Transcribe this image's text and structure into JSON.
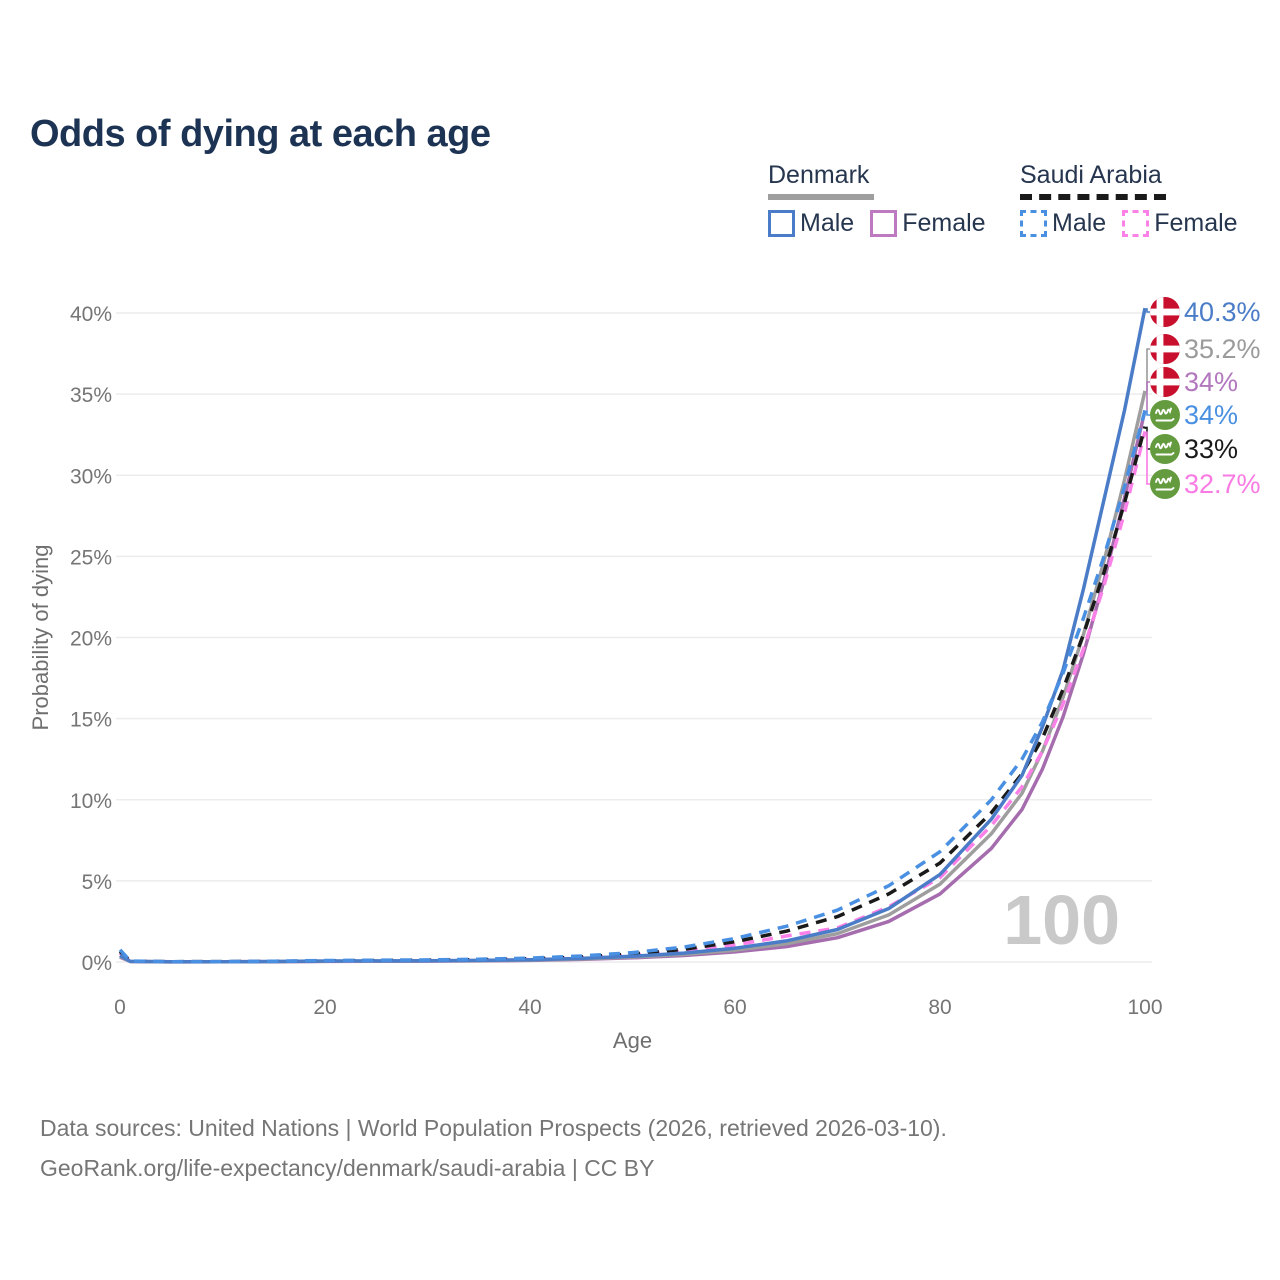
{
  "title": "Odds of dying at each age",
  "watermark": "100",
  "legend": {
    "groups": [
      {
        "id": "denmark",
        "label": "Denmark",
        "line_style": "solid",
        "underline_color": "#9e9e9e",
        "items": [
          {
            "label": "Male",
            "color": "#4a7cc7",
            "dashed": false
          },
          {
            "label": "Female",
            "color": "#bd7ac1",
            "dashed": false
          }
        ]
      },
      {
        "id": "saudi",
        "label": "Saudi Arabia",
        "line_style": "dashed",
        "underline_color": "#1a1a1a",
        "items": [
          {
            "label": "Male",
            "color": "#4a90e2",
            "dashed": true
          },
          {
            "label": "Female",
            "color": "#fb80e8",
            "dashed": true
          }
        ]
      }
    ]
  },
  "chart_data": {
    "type": "line",
    "title": "Odds of dying at each age",
    "xlabel": "Age",
    "ylabel": "Probability of dying",
    "xlim": [
      0,
      100
    ],
    "ylim": [
      0,
      40
    ],
    "x_ticks": [
      0,
      20,
      40,
      60,
      80,
      100
    ],
    "y_ticks": [
      {
        "value": 0,
        "label": "0%"
      },
      {
        "value": 5,
        "label": "5%"
      },
      {
        "value": 10,
        "label": "10%"
      },
      {
        "value": 15,
        "label": "15%"
      },
      {
        "value": 20,
        "label": "20%"
      },
      {
        "value": 25,
        "label": "25%"
      },
      {
        "value": 30,
        "label": "30%"
      },
      {
        "value": 35,
        "label": "35%"
      },
      {
        "value": 40,
        "label": "40%"
      }
    ],
    "grid": "horizontal-only",
    "legend_position": "top-right",
    "series": [
      {
        "id": "denmark-female",
        "name": "Denmark Female",
        "color": "#a56cae",
        "dashed": false,
        "points": [
          [
            0,
            0.3
          ],
          [
            1,
            0.03
          ],
          [
            5,
            0.008
          ],
          [
            10,
            0.01
          ],
          [
            15,
            0.02
          ],
          [
            20,
            0.035
          ],
          [
            25,
            0.045
          ],
          [
            30,
            0.055
          ],
          [
            35,
            0.07
          ],
          [
            40,
            0.1
          ],
          [
            45,
            0.16
          ],
          [
            50,
            0.26
          ],
          [
            55,
            0.4
          ],
          [
            60,
            0.62
          ],
          [
            65,
            0.95
          ],
          [
            70,
            1.5
          ],
          [
            75,
            2.5
          ],
          [
            80,
            4.2
          ],
          [
            85,
            7.0
          ],
          [
            88,
            9.4
          ],
          [
            90,
            11.9
          ],
          [
            92,
            15.1
          ],
          [
            94,
            19.0
          ],
          [
            96,
            23.5
          ],
          [
            98,
            28.6
          ],
          [
            100,
            34.0
          ]
        ]
      },
      {
        "id": "denmark-total",
        "name": "Denmark",
        "color": "#9e9e9e",
        "dashed": false,
        "points": [
          [
            0,
            0.35
          ],
          [
            1,
            0.035
          ],
          [
            5,
            0.009
          ],
          [
            10,
            0.011
          ],
          [
            15,
            0.025
          ],
          [
            20,
            0.045
          ],
          [
            25,
            0.055
          ],
          [
            30,
            0.065
          ],
          [
            35,
            0.085
          ],
          [
            40,
            0.12
          ],
          [
            45,
            0.19
          ],
          [
            50,
            0.3
          ],
          [
            55,
            0.47
          ],
          [
            60,
            0.73
          ],
          [
            65,
            1.12
          ],
          [
            70,
            1.75
          ],
          [
            75,
            2.9
          ],
          [
            80,
            4.8
          ],
          [
            85,
            7.9
          ],
          [
            88,
            10.4
          ],
          [
            90,
            13.0
          ],
          [
            92,
            16.3
          ],
          [
            94,
            20.2
          ],
          [
            96,
            24.7
          ],
          [
            98,
            29.7
          ],
          [
            100,
            35.2
          ]
        ]
      },
      {
        "id": "saudi-female",
        "name": "Saudi Arabia Female",
        "color": "#fb80e8",
        "dashed": true,
        "points": [
          [
            0,
            0.55
          ],
          [
            1,
            0.045
          ],
          [
            5,
            0.015
          ],
          [
            10,
            0.02
          ],
          [
            15,
            0.035
          ],
          [
            20,
            0.05
          ],
          [
            25,
            0.07
          ],
          [
            30,
            0.09
          ],
          [
            35,
            0.12
          ],
          [
            40,
            0.17
          ],
          [
            45,
            0.26
          ],
          [
            50,
            0.41
          ],
          [
            55,
            0.66
          ],
          [
            60,
            1.05
          ],
          [
            65,
            1.6
          ],
          [
            70,
            2.1
          ],
          [
            75,
            3.4
          ],
          [
            80,
            5.2
          ],
          [
            85,
            8.4
          ],
          [
            88,
            10.8
          ],
          [
            90,
            13.0
          ],
          [
            92,
            15.9
          ],
          [
            94,
            19.3
          ],
          [
            96,
            23.2
          ],
          [
            98,
            27.7
          ],
          [
            100,
            32.7
          ]
        ]
      },
      {
        "id": "saudi-total",
        "name": "Saudi Arabia",
        "color": "#1a1a1a",
        "dashed": true,
        "points": [
          [
            0,
            0.65
          ],
          [
            1,
            0.05
          ],
          [
            5,
            0.018
          ],
          [
            10,
            0.022
          ],
          [
            15,
            0.04
          ],
          [
            20,
            0.07
          ],
          [
            25,
            0.09
          ],
          [
            30,
            0.11
          ],
          [
            35,
            0.14
          ],
          [
            40,
            0.2
          ],
          [
            45,
            0.31
          ],
          [
            50,
            0.49
          ],
          [
            55,
            0.78
          ],
          [
            60,
            1.25
          ],
          [
            65,
            1.9
          ],
          [
            70,
            2.8
          ],
          [
            75,
            4.2
          ],
          [
            80,
            6.1
          ],
          [
            85,
            9.2
          ],
          [
            88,
            11.6
          ],
          [
            90,
            13.8
          ],
          [
            92,
            16.8
          ],
          [
            94,
            20.2
          ],
          [
            96,
            24.0
          ],
          [
            98,
            28.3
          ],
          [
            100,
            33.0
          ]
        ]
      },
      {
        "id": "denmark-male",
        "name": "Denmark Male",
        "color": "#4a7cc7",
        "dashed": false,
        "points": [
          [
            0,
            0.4
          ],
          [
            1,
            0.04
          ],
          [
            5,
            0.01
          ],
          [
            10,
            0.012
          ],
          [
            15,
            0.03
          ],
          [
            20,
            0.06
          ],
          [
            25,
            0.07
          ],
          [
            30,
            0.08
          ],
          [
            35,
            0.1
          ],
          [
            40,
            0.14
          ],
          [
            45,
            0.22
          ],
          [
            50,
            0.35
          ],
          [
            55,
            0.55
          ],
          [
            60,
            0.85
          ],
          [
            65,
            1.3
          ],
          [
            70,
            2.0
          ],
          [
            75,
            3.3
          ],
          [
            80,
            5.4
          ],
          [
            85,
            8.8
          ],
          [
            88,
            11.5
          ],
          [
            90,
            14.5
          ],
          [
            92,
            18.0
          ],
          [
            94,
            23.0
          ],
          [
            96,
            28.5
          ],
          [
            98,
            34.0
          ],
          [
            100,
            40.3
          ]
        ]
      },
      {
        "id": "saudi-male",
        "name": "Saudi Arabia Male",
        "color": "#4a90e2",
        "dashed": true,
        "points": [
          [
            0,
            0.75
          ],
          [
            1,
            0.06
          ],
          [
            5,
            0.02
          ],
          [
            10,
            0.025
          ],
          [
            15,
            0.05
          ],
          [
            20,
            0.09
          ],
          [
            25,
            0.11
          ],
          [
            30,
            0.13
          ],
          [
            35,
            0.17
          ],
          [
            40,
            0.24
          ],
          [
            45,
            0.37
          ],
          [
            50,
            0.58
          ],
          [
            55,
            0.92
          ],
          [
            60,
            1.45
          ],
          [
            65,
            2.2
          ],
          [
            70,
            3.2
          ],
          [
            75,
            4.7
          ],
          [
            80,
            6.8
          ],
          [
            85,
            10.0
          ],
          [
            88,
            12.5
          ],
          [
            90,
            14.8
          ],
          [
            92,
            17.8
          ],
          [
            94,
            21.2
          ],
          [
            96,
            25.0
          ],
          [
            98,
            29.3
          ],
          [
            100,
            34.0
          ]
        ]
      }
    ],
    "end_labels": [
      {
        "series": "denmark-male",
        "text": "40.3%",
        "color": "#4a7cc7",
        "flag": "denmark",
        "value": 40.3
      },
      {
        "series": "denmark-total",
        "text": "35.2%",
        "color": "#9b9b9b",
        "flag": "denmark",
        "value": 35.2
      },
      {
        "series": "denmark-female",
        "text": "34%",
        "color": "#b277bd",
        "flag": "denmark",
        "value": 34
      },
      {
        "series": "saudi-male",
        "text": "34%",
        "color": "#4a90e2",
        "flag": "saudi",
        "value": 34
      },
      {
        "series": "saudi-total",
        "text": "33%",
        "color": "#1a1a1a",
        "flag": "saudi",
        "value": 33
      },
      {
        "series": "saudi-female",
        "text": "32.7%",
        "color": "#fa7ae4",
        "flag": "saudi",
        "value": 32.7
      }
    ],
    "flag_colors": {
      "denmark": "#c8102e",
      "saudi": "#649b3f"
    }
  },
  "footer": {
    "line1": "Data sources: United Nations | World Population Prospects (2026, retrieved 2026-03-10).",
    "line2": "GeoRank.org/life-expectancy/denmark/saudi-arabia | CC BY"
  }
}
